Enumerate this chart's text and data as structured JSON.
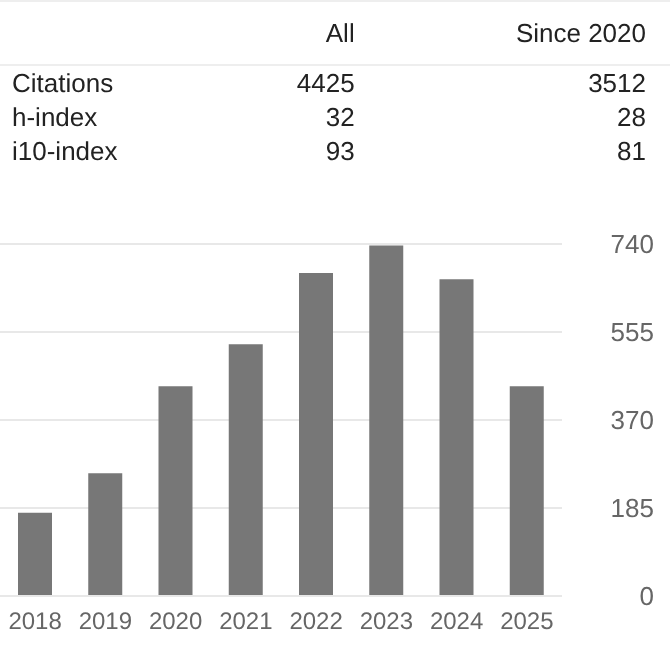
{
  "chart_data": [
    {
      "type": "other",
      "categories": [
        "Citations",
        "h-index",
        "i10-index"
      ],
      "data_labels": true,
      "series": [
        {
          "name": "All",
          "values": [
            4425,
            32,
            93
          ]
        },
        {
          "name": "Since 2020",
          "values": [
            3512,
            28,
            81
          ]
        }
      ]
    },
    {
      "type": "bar",
      "categories": [
        "2018",
        "2019",
        "2020",
        "2021",
        "2022",
        "2023",
        "2024",
        "2025"
      ],
      "values": [
        175,
        258,
        441,
        529,
        679,
        737,
        666,
        441
      ],
      "color": "#777777",
      "ylim": [
        0,
        740
      ],
      "yticks": [
        0,
        185,
        370,
        555,
        740
      ],
      "grid": "y"
    }
  ]
}
